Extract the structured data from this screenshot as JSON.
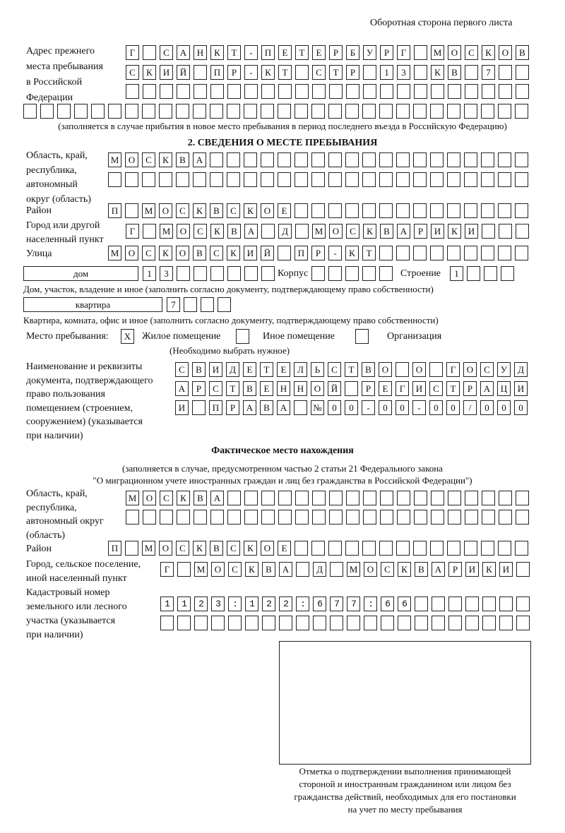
{
  "header": {
    "page_note": "Оборотная сторона первого листа"
  },
  "previous_address": {
    "label": "Адрес прежнего места пребывания в Российской Федерации",
    "label_lines": [
      "Адрес прежнего",
      "места пребывания",
      "в Российской",
      "Федерации"
    ],
    "rows": [
      "Г САНКТ-ПЕТЕРБУРГ МОСКОВ",
      "СКИЙ ПР-КТ СТР 13 КВ 7",
      "",
      ""
    ],
    "note": "(заполняется в случае прибытия в новое место пребывания в период последнего въезда в Российскую Федерацию)"
  },
  "stay": {
    "heading": "2. СВЕДЕНИЯ О МЕСТЕ ПРЕБЫВАНИЯ",
    "region_label_lines": [
      "Область, край,",
      "республика,",
      "автономный",
      "округ (область)"
    ],
    "region_rows": [
      "МОСКВА",
      ""
    ],
    "district_label": "Район",
    "district": "П МОСКВСКОЕ",
    "city_label_lines": [
      "Город или другой",
      "населенный пункт"
    ],
    "city": "Г МОСКВА Д МОСКВАРИКИ",
    "street_label": "Улица",
    "street": "МОСКОВСКИЙ ПР-КТ",
    "house_type": "дом",
    "house_number": "13",
    "korpus_label": "Корпус",
    "korpus": "",
    "building_label": "Строение",
    "building": "1",
    "house_note": "Дом, участок, владение и иное (заполнить согласно документу, подтверждающему право собственности)",
    "flat_type": "квартира",
    "flat_number": "7",
    "flat_note": "Квартира, комната, офис и иное (заполнить согласно документу, подтверждающему право собственности)",
    "place_label": "Место пребывания:",
    "options": [
      {
        "label": "Жилое помещение",
        "mark": "X"
      },
      {
        "label": "Иное помещение",
        "mark": ""
      },
      {
        "label": "Организация",
        "mark": ""
      }
    ],
    "choose_note": "(Необходимо выбрать нужное)",
    "doc_label_lines": [
      "Наименование и реквизиты",
      "документа, подтверждающего",
      "право пользования",
      "помещением (строением,",
      "сооружением) (указывается",
      "при наличии)"
    ],
    "doc_rows": [
      "СВИДЕТЕЛЬСТВО О ГОСУД",
      "АРСТВЕННОЙ РЕГИСТРАЦИ",
      "И ПРАВА №00-00-00/000"
    ]
  },
  "actual": {
    "heading": "Фактическое место нахождения",
    "note_lines": [
      "(заполняется в случае, предусмотренном частью 2 статьи 21 Федерального закона",
      "\"О миграционном учете иностранных граждан и лиц без гражданства в Российской Федерации\")"
    ],
    "region_label_lines": [
      "Область, край,",
      "республика,",
      "автономный округ",
      "(область)"
    ],
    "region_rows": [
      "МОСКВА",
      ""
    ],
    "district_label": "Район",
    "district": "П МОСКВСКОЕ",
    "city_label_lines": [
      "Город, сельское поселение,",
      "иной населенный пункт"
    ],
    "city": "Г МОСКВА Д МОСКВАРИКИ",
    "cadastral_label_lines": [
      "Кадастровый номер",
      "земельного или лесного",
      "участка (указывается",
      "при наличии)"
    ],
    "cadastral_rows": [
      "1123:122:677:66",
      ""
    ]
  },
  "stamp": {
    "caption_lines": [
      "Отметка о подтверждении выполнения принимающей",
      "стороной и иностранным гражданином или лицом без",
      "гражданства действий, необходимых для его постановки",
      "на учет по месту пребывания"
    ]
  }
}
